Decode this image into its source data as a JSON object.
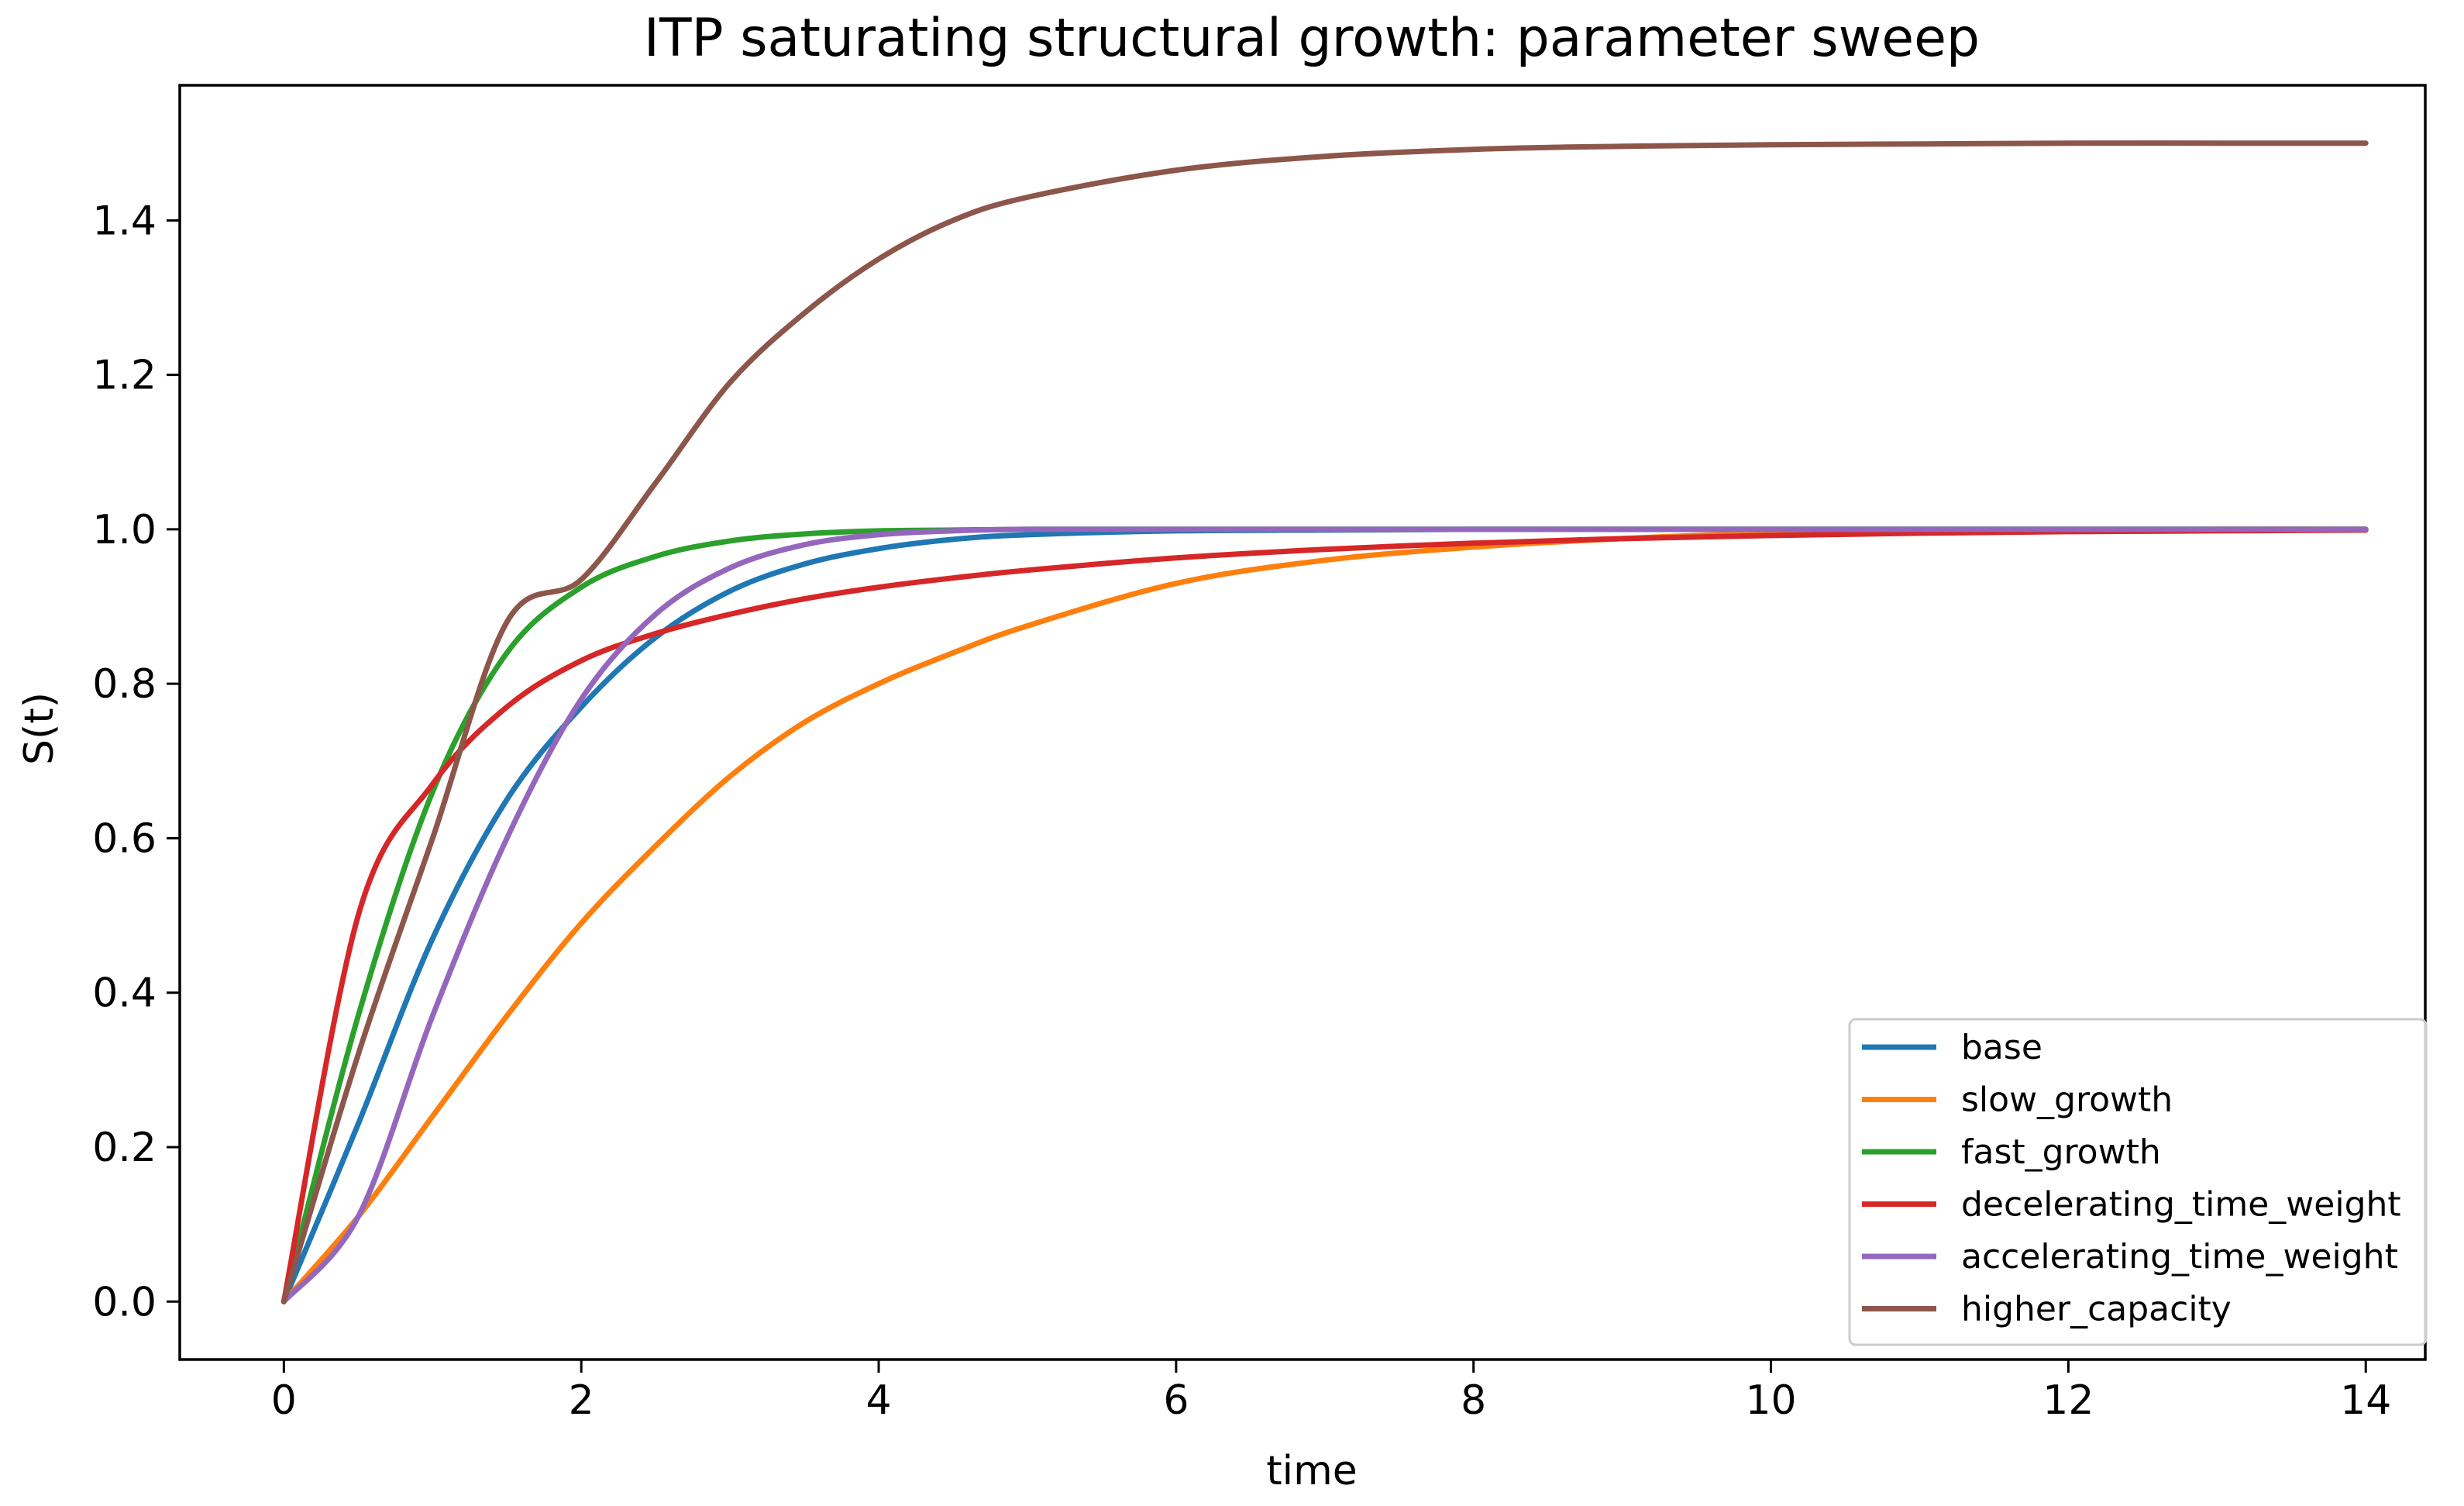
{
  "chart_data": {
    "type": "line",
    "title": "ITP saturating structural growth: parameter sweep",
    "xlabel": "time",
    "ylabel": "S(t)",
    "xlim": [
      -0.7,
      14.4
    ],
    "ylim": [
      -0.075,
      1.575
    ],
    "xticks": [
      0,
      2,
      4,
      6,
      8,
      10,
      12,
      14
    ],
    "xtick_labels": [
      "0",
      "2",
      "4",
      "6",
      "8",
      "10",
      "12",
      "14"
    ],
    "yticks": [
      0.0,
      0.2,
      0.4,
      0.6,
      0.8,
      1.0,
      1.2,
      1.4
    ],
    "ytick_labels": [
      "0.0",
      "0.2",
      "0.4",
      "0.6",
      "0.8",
      "1.0",
      "1.2",
      "1.4"
    ],
    "grid": false,
    "legend_position": "lower-right",
    "x": [
      0,
      0.5,
      1,
      1.5,
      2,
      2.5,
      3,
      3.5,
      4,
      4.5,
      5,
      6,
      7,
      8,
      9,
      10,
      11,
      12,
      13,
      14
    ],
    "series": [
      {
        "name": "base",
        "color": "#1f77b4",
        "values": [
          0.0,
          0.23,
          0.47,
          0.65,
          0.77,
          0.86,
          0.92,
          0.955,
          0.975,
          0.987,
          0.993,
          0.998,
          0.999,
          1.0,
          1.0,
          1.0,
          1.0,
          1.0,
          1.0,
          1.0
        ]
      },
      {
        "name": "slow_growth",
        "color": "#ff7f0e",
        "values": [
          0.0,
          0.11,
          0.24,
          0.37,
          0.49,
          0.59,
          0.68,
          0.75,
          0.8,
          0.84,
          0.875,
          0.93,
          0.96,
          0.977,
          0.988,
          0.995,
          0.998,
          0.999,
          1.0,
          1.0
        ]
      },
      {
        "name": "fast_growth",
        "color": "#2ca02c",
        "values": [
          0.0,
          0.37,
          0.66,
          0.84,
          0.925,
          0.965,
          0.985,
          0.994,
          0.998,
          0.999,
          1.0,
          1.0,
          1.0,
          1.0,
          1.0,
          1.0,
          1.0,
          1.0,
          1.0,
          1.0
        ]
      },
      {
        "name": "decelerating_time_weight",
        "color": "#d62728",
        "values": [
          0.0,
          0.5,
          0.67,
          0.77,
          0.83,
          0.865,
          0.89,
          0.91,
          0.925,
          0.937,
          0.947,
          0.963,
          0.974,
          0.982,
          0.988,
          0.992,
          0.995,
          0.997,
          0.998,
          0.999
        ]
      },
      {
        "name": "accelerating_time_weight",
        "color": "#9467bd",
        "values": [
          0.0,
          0.11,
          0.37,
          0.6,
          0.78,
          0.89,
          0.95,
          0.98,
          0.993,
          0.998,
          1.0,
          1.0,
          1.0,
          1.0,
          1.0,
          1.0,
          1.0,
          1.0,
          1.0,
          1.0
        ]
      },
      {
        "name": "higher_capacity",
        "color": "#8c564b",
        "values": [
          0.0,
          0.32,
          0.6,
          0.88,
          0.935,
          1.06,
          1.19,
          1.28,
          1.35,
          1.4,
          1.43,
          1.465,
          1.483,
          1.492,
          1.496,
          1.498,
          1.499,
          1.5,
          1.5,
          1.5
        ]
      }
    ]
  }
}
